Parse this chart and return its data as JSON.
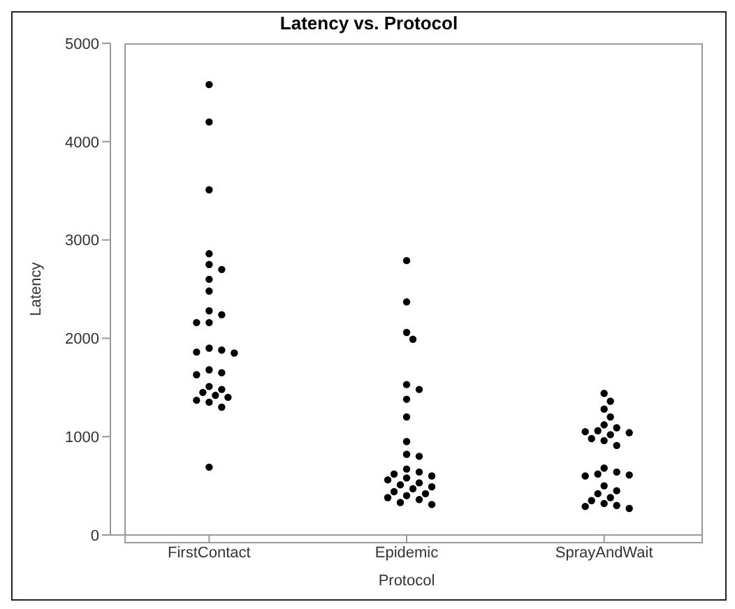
{
  "chart_data": {
    "type": "scatter",
    "title": "Latency vs. Protocol",
    "xlabel": "Protocol",
    "ylabel": "Latency",
    "categories": [
      "FirstContact",
      "Epidemic",
      "SprayAndWait"
    ],
    "ylim": [
      0,
      5000
    ],
    "yticks": [
      0,
      1000,
      2000,
      3000,
      4000,
      5000
    ],
    "grid": false,
    "marker": "circle",
    "series": [
      {
        "color": "#000000",
        "x": [
          "FirstContact",
          "FirstContact",
          "FirstContact",
          "FirstContact",
          "FirstContact",
          "FirstContact",
          "FirstContact",
          "FirstContact",
          "FirstContact",
          "FirstContact",
          "FirstContact",
          "FirstContact",
          "FirstContact",
          "FirstContact",
          "FirstContact",
          "FirstContact",
          "FirstContact",
          "FirstContact",
          "FirstContact",
          "FirstContact",
          "FirstContact",
          "FirstContact",
          "FirstContact",
          "FirstContact",
          "FirstContact",
          "FirstContact",
          "FirstContact",
          "FirstContact",
          "Epidemic",
          "Epidemic",
          "Epidemic",
          "Epidemic",
          "Epidemic",
          "Epidemic",
          "Epidemic",
          "Epidemic",
          "Epidemic",
          "Epidemic",
          "Epidemic",
          "Epidemic",
          "Epidemic",
          "Epidemic",
          "Epidemic",
          "Epidemic",
          "Epidemic",
          "Epidemic",
          "Epidemic",
          "Epidemic",
          "Epidemic",
          "Epidemic",
          "Epidemic",
          "Epidemic",
          "Epidemic",
          "Epidemic",
          "Epidemic",
          "Epidemic",
          "SprayAndWait",
          "SprayAndWait",
          "SprayAndWait",
          "SprayAndWait",
          "SprayAndWait",
          "SprayAndWait",
          "SprayAndWait",
          "SprayAndWait",
          "SprayAndWait",
          "SprayAndWait",
          "SprayAndWait",
          "SprayAndWait",
          "SprayAndWait",
          "SprayAndWait",
          "SprayAndWait",
          "SprayAndWait",
          "SprayAndWait",
          "SprayAndWait",
          "SprayAndWait",
          "SprayAndWait",
          "SprayAndWait",
          "SprayAndWait",
          "SprayAndWait",
          "SprayAndWait",
          "SprayAndWait",
          "SprayAndWait",
          "SprayAndWait"
        ],
        "values": [
          4580,
          4200,
          3510,
          2860,
          2750,
          2700,
          2600,
          2480,
          2280,
          2240,
          2160,
          2160,
          1900,
          1880,
          1860,
          1850,
          1680,
          1650,
          1630,
          1510,
          1480,
          1450,
          1420,
          1400,
          1370,
          1350,
          1300,
          690,
          2790,
          2370,
          2060,
          1990,
          1530,
          1480,
          1380,
          1200,
          950,
          820,
          800,
          670,
          640,
          620,
          600,
          580,
          560,
          530,
          510,
          490,
          470,
          440,
          420,
          400,
          380,
          360,
          330,
          310,
          1440,
          1360,
          1280,
          1200,
          1120,
          1090,
          1060,
          1050,
          1040,
          1020,
          980,
          960,
          910,
          680,
          640,
          620,
          600,
          610,
          500,
          450,
          420,
          380,
          350,
          320,
          300,
          290,
          270
        ]
      }
    ]
  }
}
